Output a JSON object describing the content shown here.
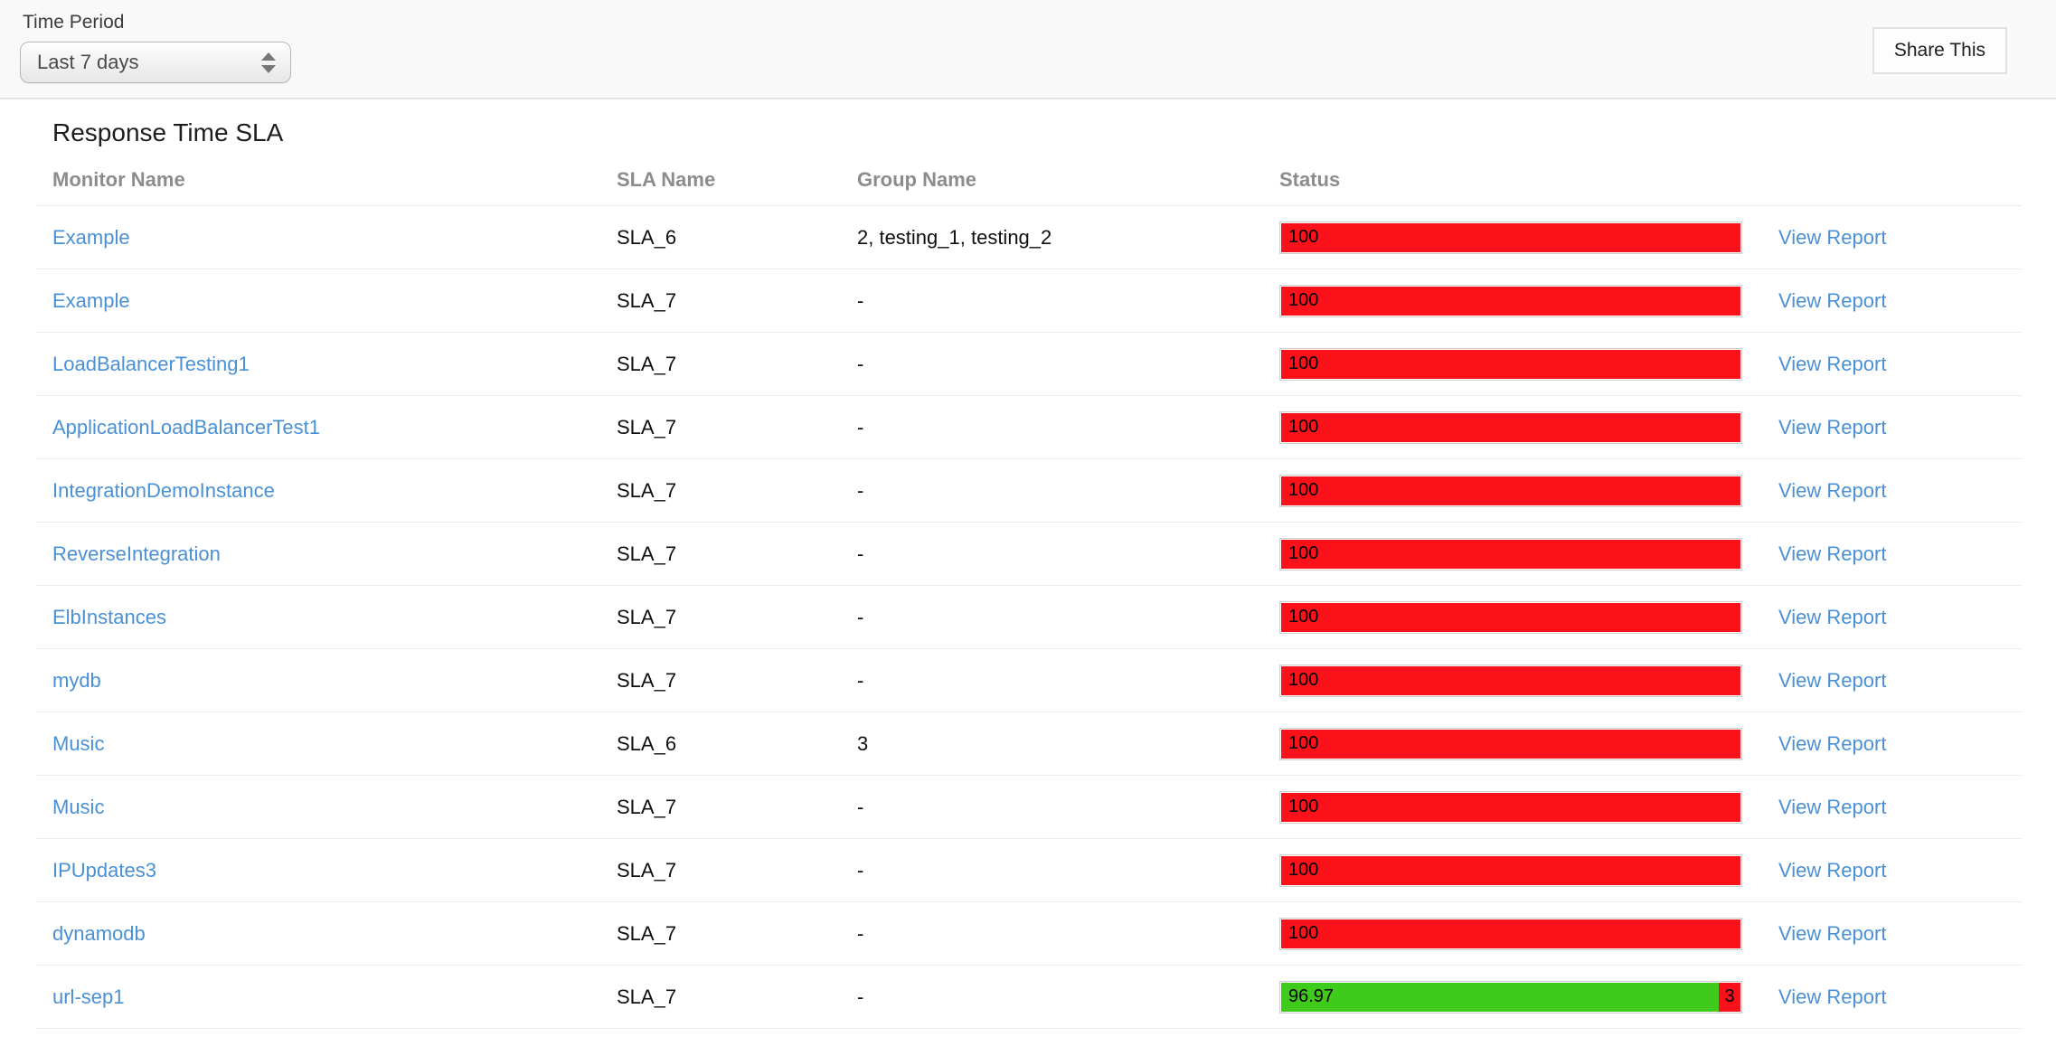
{
  "toolbar": {
    "time_period_label": "Time Period",
    "time_period_value": "Last 7 days",
    "share_button_label": "Share This"
  },
  "report": {
    "title": "Response Time SLA",
    "columns": [
      "Monitor Name",
      "SLA Name",
      "Group Name",
      "Status"
    ],
    "view_report_label": "View Report",
    "rows": [
      {
        "monitor": "Example",
        "sla": "SLA_6",
        "group": "2, testing_1, testing_2",
        "segments": [
          {
            "value": "100",
            "pct": 100,
            "color": "red"
          }
        ]
      },
      {
        "monitor": "Example",
        "sla": "SLA_7",
        "group": "-",
        "segments": [
          {
            "value": "100",
            "pct": 100,
            "color": "red"
          }
        ]
      },
      {
        "monitor": "LoadBalancerTesting1",
        "sla": "SLA_7",
        "group": "-",
        "segments": [
          {
            "value": "100",
            "pct": 100,
            "color": "red"
          }
        ]
      },
      {
        "monitor": "ApplicationLoadBalancerTest1",
        "sla": "SLA_7",
        "group": "-",
        "segments": [
          {
            "value": "100",
            "pct": 100,
            "color": "red"
          }
        ]
      },
      {
        "monitor": "IntegrationDemoInstance",
        "sla": "SLA_7",
        "group": "-",
        "segments": [
          {
            "value": "100",
            "pct": 100,
            "color": "red"
          }
        ]
      },
      {
        "monitor": "ReverseIntegration",
        "sla": "SLA_7",
        "group": "-",
        "segments": [
          {
            "value": "100",
            "pct": 100,
            "color": "red"
          }
        ]
      },
      {
        "monitor": "ElbInstances",
        "sla": "SLA_7",
        "group": "-",
        "segments": [
          {
            "value": "100",
            "pct": 100,
            "color": "red"
          }
        ]
      },
      {
        "monitor": "mydb",
        "sla": "SLA_7",
        "group": "-",
        "segments": [
          {
            "value": "100",
            "pct": 100,
            "color": "red"
          }
        ]
      },
      {
        "monitor": "Music",
        "sla": "SLA_6",
        "group": "3",
        "segments": [
          {
            "value": "100",
            "pct": 100,
            "color": "red"
          }
        ]
      },
      {
        "monitor": "Music",
        "sla": "SLA_7",
        "group": "-",
        "segments": [
          {
            "value": "100",
            "pct": 100,
            "color": "red"
          }
        ]
      },
      {
        "monitor": "IPUpdates3",
        "sla": "SLA_7",
        "group": "-",
        "segments": [
          {
            "value": "100",
            "pct": 100,
            "color": "red"
          }
        ]
      },
      {
        "monitor": "dynamodb",
        "sla": "SLA_7",
        "group": "-",
        "segments": [
          {
            "value": "100",
            "pct": 100,
            "color": "red"
          }
        ]
      },
      {
        "monitor": "url-sep1",
        "sla": "SLA_7",
        "group": "-",
        "segments": [
          {
            "value": "96.97",
            "pct": 96.97,
            "color": "green"
          },
          {
            "value": "3",
            "pct": 3.03,
            "color": "red"
          }
        ]
      }
    ]
  },
  "colors": {
    "red": "#fa1119",
    "green": "#3ecb1b",
    "link_blue": "#4a90d5"
  }
}
